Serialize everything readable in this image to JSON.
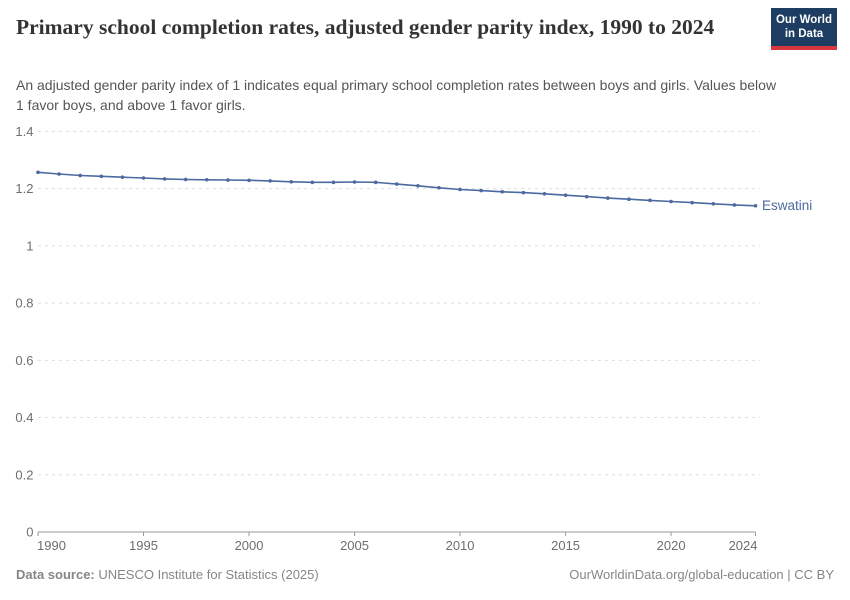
{
  "header": {
    "title": "Primary school completion rates, adjusted gender parity index, 1990 to 2024",
    "subtitle": "An adjusted gender parity index of 1 indicates equal primary school completion rates between boys and girls. Values below 1 favor boys, and above 1 favor girls.",
    "logo": {
      "line1": "Our World",
      "line2": "in Data"
    }
  },
  "chart_data": {
    "type": "line",
    "title": "Primary school completion rates, adjusted gender parity index, 1990 to 2024",
    "xlabel": "",
    "ylabel": "",
    "x": [
      1990,
      1991,
      1992,
      1993,
      1994,
      1995,
      1996,
      1997,
      1998,
      1999,
      2000,
      2001,
      2002,
      2003,
      2004,
      2005,
      2006,
      2007,
      2008,
      2009,
      2010,
      2011,
      2012,
      2013,
      2014,
      2015,
      2016,
      2017,
      2018,
      2019,
      2020,
      2021,
      2022,
      2023,
      2024
    ],
    "series": [
      {
        "name": "Eswatini",
        "color": "#4c6a9f",
        "values": [
          1.257,
          1.251,
          1.246,
          1.243,
          1.24,
          1.237,
          1.234,
          1.232,
          1.231,
          1.23,
          1.229,
          1.227,
          1.224,
          1.222,
          1.222,
          1.223,
          1.222,
          1.216,
          1.21,
          1.203,
          1.197,
          1.193,
          1.189,
          1.186,
          1.182,
          1.177,
          1.172,
          1.167,
          1.163,
          1.159,
          1.155,
          1.151,
          1.147,
          1.143,
          1.14
        ]
      }
    ],
    "x_ticks": [
      1990,
      1995,
      2000,
      2005,
      2010,
      2015,
      2020,
      2024
    ],
    "y_ticks": [
      0,
      0.2,
      0.4,
      0.6,
      0.8,
      1,
      1.2,
      1.4
    ],
    "xlim": [
      1990,
      2024
    ],
    "ylim": [
      0,
      1.4
    ],
    "grid": "horizontal-dashed",
    "legend_position": "line-end-label"
  },
  "footer": {
    "source_label": "Data source:",
    "source_value": " UNESCO Institute for Statistics (2025)",
    "link": "OurWorldinData.org/global-education | CC BY"
  },
  "colors": {
    "line": "#4c6a9f",
    "grid": "#dedede",
    "axis": "#9a9a9a",
    "tick_label": "#6e6e6e",
    "logo_bg": "#1d3d63",
    "logo_accent": "#d7373f"
  }
}
